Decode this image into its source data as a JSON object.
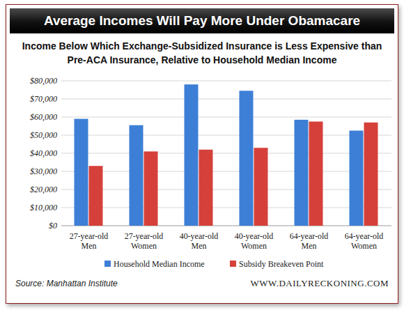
{
  "chart_data": {
    "type": "bar",
    "title": "Average Incomes Will Pay More Under Obamacare",
    "subtitle": "Income Below Which Exchange-Subsidized Insurance is Less Expensive than Pre-ACA Insurance, Relative to Household Median Income",
    "categories": [
      "27-year-old Men",
      "27-year-old Women",
      "40-year-old Men",
      "40-year-old Women",
      "64-year-old Men",
      "64-year-old Women"
    ],
    "series": [
      {
        "name": "Household Median Income",
        "color": "#3d7fd6",
        "values": [
          59000,
          55500,
          78000,
          74500,
          58500,
          52500
        ]
      },
      {
        "name": "Subsidy Breakeven Point",
        "color": "#d5413a",
        "values": [
          33000,
          41000,
          42000,
          43000,
          57500,
          57000
        ]
      }
    ],
    "ylim": [
      0,
      80000
    ],
    "yticks": [
      {
        "value": 0,
        "label": "$0"
      },
      {
        "value": 10000,
        "label": "$10,000"
      },
      {
        "value": 20000,
        "label": "$20,000"
      },
      {
        "value": 30000,
        "label": "$30,000"
      },
      {
        "value": 40000,
        "label": "$40,000"
      },
      {
        "value": 50000,
        "label": "$50,000"
      },
      {
        "value": 60000,
        "label": "$60,000"
      },
      {
        "value": 70000,
        "label": "$70,000"
      },
      {
        "value": 80000,
        "label": "$80,000"
      }
    ],
    "grid": true,
    "legend": "bottom",
    "annotations": [
      "Source: Manhattan Institute",
      "WWW.DAILYRECKONING.COM"
    ]
  }
}
